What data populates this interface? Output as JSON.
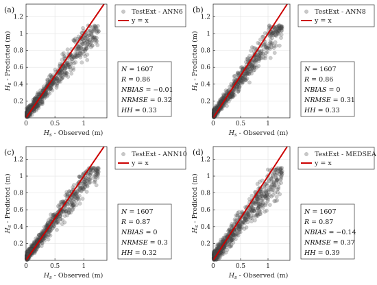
{
  "chart_data": [
    {
      "type": "scatter",
      "panel": "(a)",
      "xlabel_main": "H",
      "xlabel_sub": "s",
      "xlabel_rest": " - Observed (m)",
      "ylabel_main": "H",
      "ylabel_sub": "s",
      "ylabel_rest": " - Predicted (m)",
      "xlim": [
        0,
        1.4
      ],
      "ylim": [
        0,
        1.35
      ],
      "xticks": [
        {
          "v": 0,
          "label": "0"
        },
        {
          "v": 0.5,
          "label": "0.5"
        },
        {
          "v": 1,
          "label": "1"
        }
      ],
      "yticks": [
        {
          "v": 0.2,
          "label": "0.2"
        },
        {
          "v": 0.4,
          "label": "0.4"
        },
        {
          "v": 0.6,
          "label": "0.6"
        },
        {
          "v": 0.8,
          "label": "0.8"
        },
        {
          "v": 1,
          "label": "1"
        },
        {
          "v": 1.2,
          "label": "1.2"
        }
      ],
      "grid": true,
      "legend_position": "outside-right-top",
      "series": [
        {
          "name": "TestExt - ANN6",
          "color": "#555555",
          "n": 1607,
          "seed": 11,
          "slope": 0.86,
          "spread": 0.085
        },
        {
          "name": "y = x",
          "color": "#cc0000",
          "line": [
            [
              0,
              0
            ],
            [
              1.35,
              1.35
            ]
          ]
        }
      ],
      "stats": {
        "n_label": "N",
        "n_value": "= 1607",
        "r_label": "R",
        "r_value": "= 0.86",
        "nbias_label": "NBIAS",
        "nbias_value": "= −0.01",
        "nrmse_label": "NRMSE",
        "nrmse_value": "= 0.32",
        "hh_label": "HH",
        "hh_value": "= 0.33"
      }
    },
    {
      "type": "scatter",
      "panel": "(b)",
      "xlabel_main": "H",
      "xlabel_sub": "s",
      "xlabel_rest": " - Observed (m)",
      "ylabel_main": "H",
      "ylabel_sub": "s",
      "ylabel_rest": " - Predicted (m)",
      "xlim": [
        0,
        1.4
      ],
      "ylim": [
        0,
        1.35
      ],
      "xticks": [
        {
          "v": 0,
          "label": "0"
        },
        {
          "v": 0.5,
          "label": "0.5"
        },
        {
          "v": 1,
          "label": "1"
        }
      ],
      "yticks": [
        {
          "v": 0.2,
          "label": "0.2"
        },
        {
          "v": 0.4,
          "label": "0.4"
        },
        {
          "v": 0.6,
          "label": "0.6"
        },
        {
          "v": 0.8,
          "label": "0.8"
        },
        {
          "v": 1,
          "label": "1"
        },
        {
          "v": 1.2,
          "label": "1.2"
        }
      ],
      "grid": true,
      "legend_position": "outside-right-top",
      "series": [
        {
          "name": "TestExt - ANN8",
          "color": "#555555",
          "n": 1607,
          "seed": 23,
          "slope": 0.88,
          "spread": 0.08
        },
        {
          "name": "y = x",
          "color": "#cc0000",
          "line": [
            [
              0,
              0
            ],
            [
              1.35,
              1.35
            ]
          ]
        }
      ],
      "stats": {
        "n_label": "N",
        "n_value": "= 1607",
        "r_label": "R",
        "r_value": "= 0.86",
        "nbias_label": "NBIAS",
        "nbias_value": "= 0",
        "nrmse_label": "NRMSE",
        "nrmse_value": "= 0.31",
        "hh_label": "HH",
        "hh_value": "= 0.33"
      }
    },
    {
      "type": "scatter",
      "panel": "(c)",
      "xlabel_main": "H",
      "xlabel_sub": "s",
      "xlabel_rest": " - Observed (m)",
      "ylabel_main": "H",
      "ylabel_sub": "s",
      "ylabel_rest": " - Predicted (m)",
      "xlim": [
        0,
        1.4
      ],
      "ylim": [
        0,
        1.35
      ],
      "xticks": [
        {
          "v": 0,
          "label": "0"
        },
        {
          "v": 0.5,
          "label": "0.5"
        },
        {
          "v": 1,
          "label": "1"
        }
      ],
      "yticks": [
        {
          "v": 0.2,
          "label": "0.2"
        },
        {
          "v": 0.4,
          "label": "0.4"
        },
        {
          "v": 0.6,
          "label": "0.6"
        },
        {
          "v": 0.8,
          "label": "0.8"
        },
        {
          "v": 1,
          "label": "1"
        },
        {
          "v": 1.2,
          "label": "1.2"
        }
      ],
      "grid": true,
      "legend_position": "outside-right-top",
      "series": [
        {
          "name": "TestExt - ANN10",
          "color": "#555555",
          "n": 1607,
          "seed": 37,
          "slope": 0.9,
          "spread": 0.08
        },
        {
          "name": "y = x",
          "color": "#cc0000",
          "line": [
            [
              0,
              0
            ],
            [
              1.35,
              1.35
            ]
          ]
        }
      ],
      "stats": {
        "n_label": "N",
        "n_value": "= 1607",
        "r_label": "R",
        "r_value": "= 0.87",
        "nbias_label": "NBIAS",
        "nbias_value": "= 0",
        "nrmse_label": "NRMSE",
        "nrmse_value": "= 0.3",
        "hh_label": "HH",
        "hh_value": "= 0.32"
      }
    },
    {
      "type": "scatter",
      "panel": "(d)",
      "xlabel_main": "H",
      "xlabel_sub": "s",
      "xlabel_rest": " - Observed (m)",
      "ylabel_main": "H",
      "ylabel_sub": "s",
      "ylabel_rest": " - Predicted (m)",
      "xlim": [
        0,
        1.4
      ],
      "ylim": [
        0,
        1.35
      ],
      "xticks": [
        {
          "v": 0,
          "label": "0"
        },
        {
          "v": 0.5,
          "label": "0.5"
        },
        {
          "v": 1,
          "label": "1"
        }
      ],
      "yticks": [
        {
          "v": 0.2,
          "label": "0.2"
        },
        {
          "v": 0.4,
          "label": "0.4"
        },
        {
          "v": 0.6,
          "label": "0.6"
        },
        {
          "v": 0.8,
          "label": "0.8"
        },
        {
          "v": 1,
          "label": "1"
        },
        {
          "v": 1.2,
          "label": "1.2"
        }
      ],
      "grid": true,
      "legend_position": "outside-right-top",
      "series": [
        {
          "name": "TestExt - MEDSEA",
          "color": "#555555",
          "n": 1607,
          "seed": 53,
          "slope": 0.82,
          "spread": 0.1
        },
        {
          "name": "y = x",
          "color": "#cc0000",
          "line": [
            [
              0,
              0
            ],
            [
              1.35,
              1.35
            ]
          ]
        }
      ],
      "stats": {
        "n_label": "N",
        "n_value": "= 1607",
        "r_label": "R",
        "r_value": "= 0.87",
        "nbias_label": "NBIAS",
        "nbias_value": "= −0.14",
        "nrmse_label": "NRMSE",
        "nrmse_value": "= 0.37",
        "hh_label": "HH",
        "hh_value": "= 0.39"
      }
    }
  ]
}
